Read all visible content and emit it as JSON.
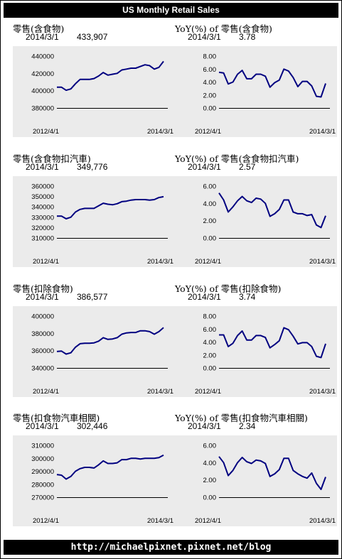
{
  "header": {
    "title": "US Monthly Retail Sales"
  },
  "footer": {
    "url": "http://michaelpixnet.pixnet.net/blog"
  },
  "panels": [
    {
      "title": "零售(含食物)",
      "date": "2014/3/1",
      "value": "433,907",
      "x_start": "2012/4/1",
      "x_end": "2014/3/1",
      "y_ticks": [
        "440000",
        "420000",
        "400000",
        "380000"
      ]
    },
    {
      "title": "YoY(%) of 零售(含食物)",
      "date": "2014/3/1",
      "value": "3.78",
      "x_start": "2012/4/1",
      "x_end": "2014/3/1",
      "y_ticks": [
        "8.00",
        "6.00",
        "4.00",
        "2.00",
        "0.00"
      ]
    },
    {
      "title": "零售(含食物扣汽車)",
      "date": "2014/3/1",
      "value": "349,776",
      "x_start": "2012/4/1",
      "x_end": "2014/3/1",
      "y_ticks": [
        "360000",
        "350000",
        "340000",
        "330000",
        "320000",
        "310000"
      ]
    },
    {
      "title": "YoY(%) of 零售(含食物扣汽車)",
      "date": "2014/3/1",
      "value": "2.57",
      "x_start": "2012/4/1",
      "x_end": "2014/3/1",
      "y_ticks": [
        "6.00",
        "4.00",
        "2.00",
        "0.00"
      ]
    },
    {
      "title": "零售(扣除食物)",
      "date": "2014/3/1",
      "value": "386,577",
      "x_start": "2012/4/1",
      "x_end": "2014/3/1",
      "y_ticks": [
        "400000",
        "380000",
        "360000",
        "340000"
      ]
    },
    {
      "title": "YoY(%) of 零售(扣除食物)",
      "date": "2014/3/1",
      "value": "3.74",
      "x_start": "2012/4/1",
      "x_end": "2014/3/1",
      "y_ticks": [
        "8.00",
        "6.00",
        "4.00",
        "2.00",
        "0.00"
      ]
    },
    {
      "title": "零售(扣食物汽車相關)",
      "date": "2014/3/1",
      "value": "302,446",
      "x_start": "2012/4/1",
      "x_end": "2014/3/1",
      "y_ticks": [
        "310000",
        "300000",
        "290000",
        "280000",
        "270000"
      ]
    },
    {
      "title": "YoY(%) of 零售(扣食物汽車相關)",
      "date": "2014/3/1",
      "value": "2.34",
      "x_start": "2012/4/1",
      "x_end": "2014/3/1",
      "y_ticks": [
        "6.00",
        "4.00",
        "2.00",
        "0.00"
      ]
    }
  ],
  "chart_data": [
    {
      "type": "line",
      "title": "零售(含食物)",
      "x_start": "2012-04-01",
      "x_end": "2014-03-01",
      "ylim": [
        380000,
        440000
      ],
      "line_color": "#000080",
      "values": [
        404000,
        404000,
        400500,
        402000,
        408000,
        413000,
        413000,
        413000,
        414000,
        417000,
        421000,
        418000,
        419000,
        420000,
        424000,
        425000,
        426000,
        426000,
        428000,
        430000,
        429000,
        425000,
        427000,
        433907
      ]
    },
    {
      "type": "line",
      "title": "YoY(%) of 零售(含食物)",
      "x_start": "2012-04-01",
      "x_end": "2014-03-01",
      "ylim": [
        0,
        8
      ],
      "line_color": "#000080",
      "values": [
        5.5,
        5.4,
        3.7,
        4.0,
        5.2,
        5.8,
        4.5,
        4.5,
        5.2,
        5.2,
        4.9,
        3.2,
        3.9,
        4.3,
        6.0,
        5.7,
        4.7,
        3.3,
        4.1,
        4.1,
        3.4,
        1.8,
        1.7,
        3.78
      ]
    },
    {
      "type": "line",
      "title": "零售(含食物扣汽車)",
      "x_start": "2012-04-01",
      "x_end": "2014-03-01",
      "ylim": [
        310000,
        360000
      ],
      "line_color": "#000080",
      "values": [
        331000,
        331000,
        328500,
        330000,
        335000,
        337500,
        338500,
        338500,
        338500,
        341000,
        343500,
        342500,
        342000,
        343000,
        345000,
        345500,
        346500,
        347000,
        347000,
        347000,
        346500,
        347000,
        349000,
        349776
      ]
    },
    {
      "type": "line",
      "title": "YoY(%) of 零售(含食物扣汽車)",
      "x_start": "2012-04-01",
      "x_end": "2014-03-01",
      "ylim": [
        0,
        6
      ],
      "line_color": "#000080",
      "values": [
        5.2,
        4.4,
        3.0,
        3.6,
        4.3,
        4.8,
        4.3,
        4.1,
        4.6,
        4.5,
        4.0,
        2.5,
        2.8,
        3.3,
        4.4,
        4.4,
        3.0,
        2.8,
        2.8,
        2.6,
        2.7,
        1.5,
        1.2,
        2.57
      ]
    },
    {
      "type": "line",
      "title": "零售(扣除食物)",
      "x_start": "2012-04-01",
      "x_end": "2014-03-01",
      "ylim": [
        340000,
        400000
      ],
      "line_color": "#000080",
      "values": [
        359000,
        359500,
        356000,
        357500,
        364000,
        368000,
        368500,
        368500,
        369000,
        371000,
        375000,
        373000,
        373500,
        375000,
        379000,
        380500,
        381000,
        381000,
        383000,
        383000,
        382000,
        379000,
        382000,
        386577
      ]
    },
    {
      "type": "line",
      "title": "YoY(%) of 零售(扣除食物)",
      "x_start": "2012-04-01",
      "x_end": "2014-03-01",
      "ylim": [
        0,
        8
      ],
      "line_color": "#000080",
      "values": [
        5.1,
        5.1,
        3.3,
        3.8,
        5.0,
        5.7,
        4.3,
        4.3,
        5.0,
        5.0,
        4.7,
        3.1,
        3.6,
        4.2,
        6.2,
        5.9,
        4.9,
        3.7,
        3.9,
        3.9,
        3.3,
        1.8,
        1.6,
        3.74
      ]
    },
    {
      "type": "line",
      "title": "零售(扣食物汽車相關)",
      "x_start": "2012-04-01",
      "x_end": "2014-03-01",
      "ylim": [
        270000,
        310000
      ],
      "line_color": "#000080",
      "values": [
        287500,
        287000,
        284000,
        286000,
        290000,
        292000,
        293000,
        293000,
        292500,
        295000,
        298000,
        296000,
        296000,
        296500,
        299000,
        299000,
        300000,
        300000,
        299500,
        300000,
        300000,
        300000,
        300500,
        302446
      ]
    },
    {
      "type": "line",
      "title": "YoY(%) of 零售(扣食物汽車相關)",
      "x_start": "2012-04-01",
      "x_end": "2014-03-01",
      "ylim": [
        0,
        6
      ],
      "line_color": "#000080",
      "values": [
        4.7,
        4.0,
        2.5,
        3.1,
        4.0,
        4.6,
        4.1,
        3.9,
        4.3,
        4.2,
        3.9,
        2.4,
        2.7,
        3.2,
        4.5,
        4.5,
        3.1,
        2.7,
        2.4,
        2.2,
        2.8,
        1.6,
        0.9,
        2.34
      ]
    }
  ]
}
